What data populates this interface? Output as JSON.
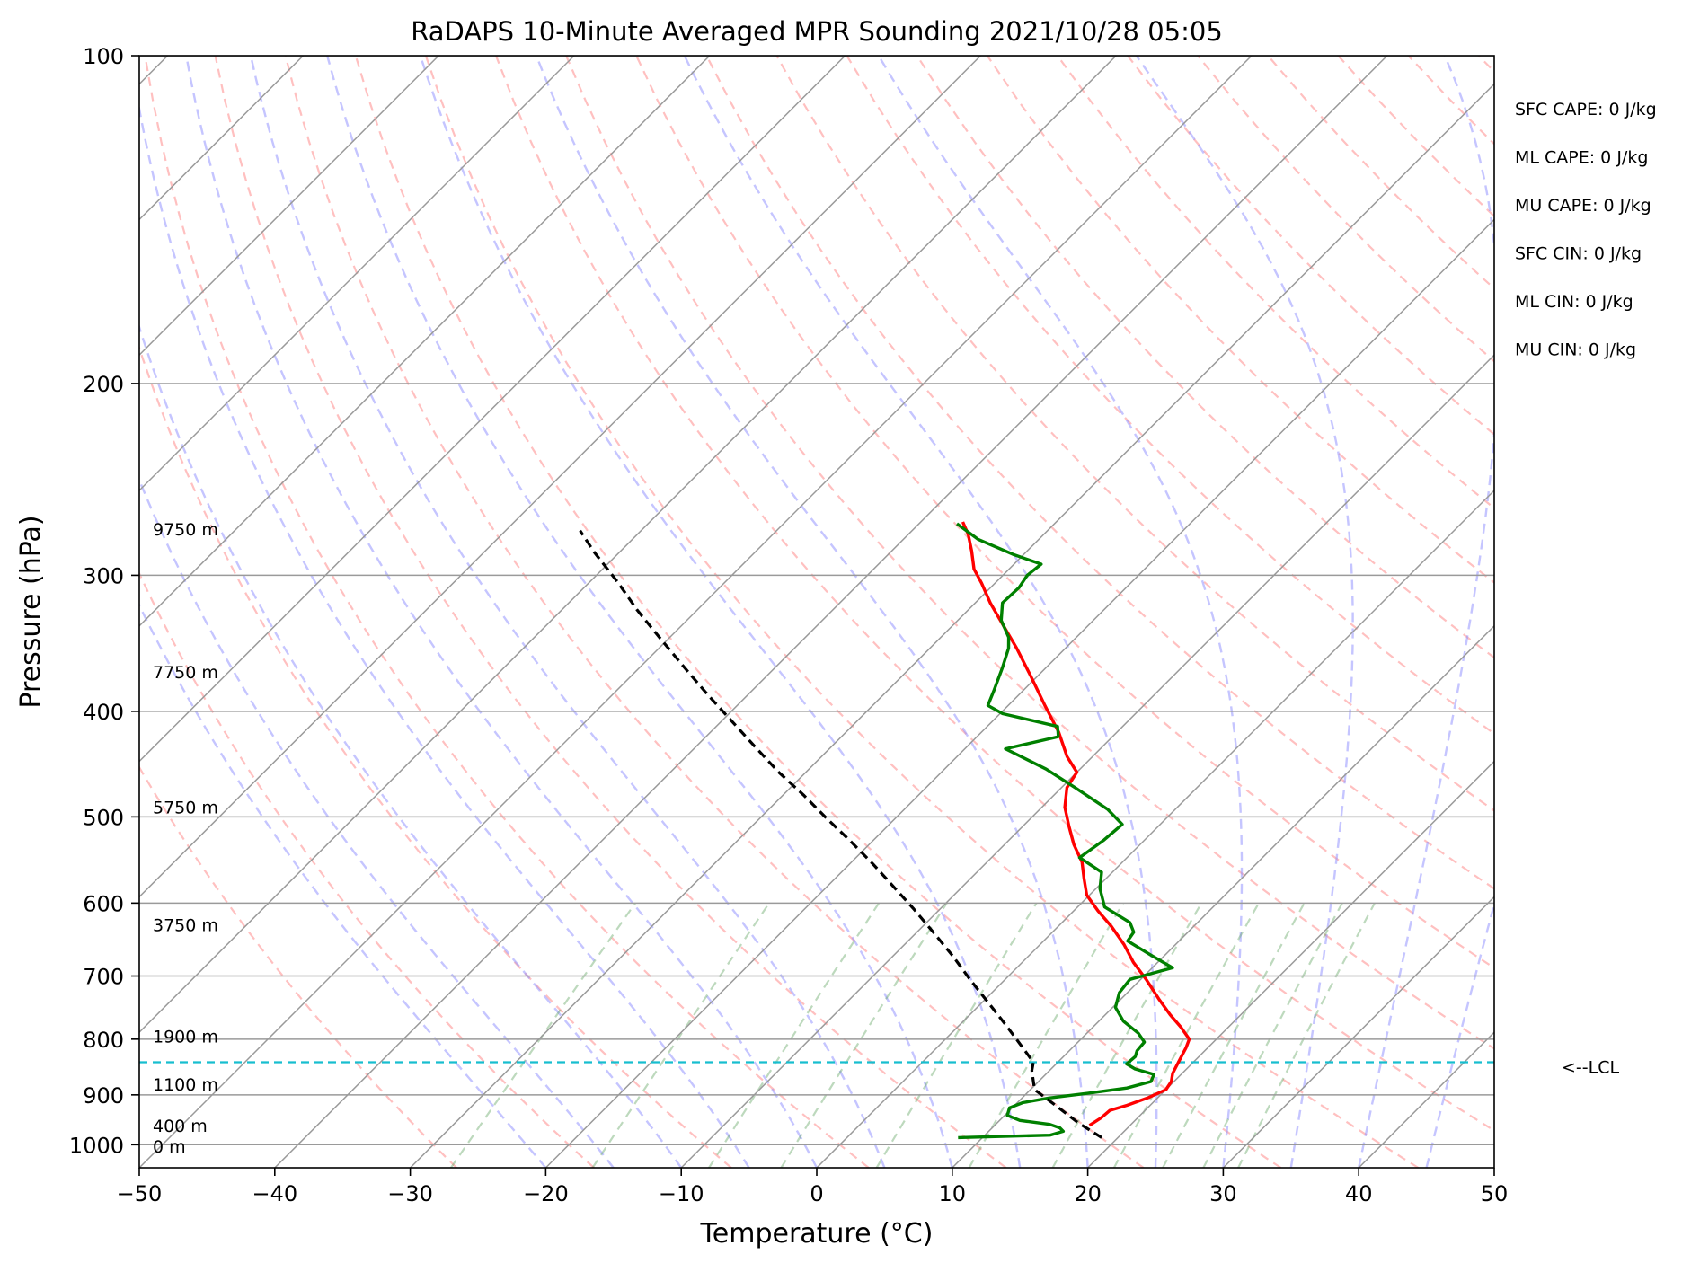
{
  "chart_data": {
    "type": "line",
    "title": "RaDAPS 10-Minute Averaged MPR Sounding 2021/10/28 05:05",
    "xlabel": "Temperature (°C)",
    "ylabel": "Pressure (hPa)",
    "xlim": [
      -50,
      50
    ],
    "ylim": [
      1050,
      100
    ],
    "yscale": "log",
    "skew": true,
    "grid": true,
    "x_ticks": [
      "−50",
      "−40",
      "−30",
      "−20",
      "−10",
      "0",
      "10",
      "20",
      "30",
      "40",
      "50"
    ],
    "y_ticks": [
      "100",
      "200",
      "300",
      "400",
      "500",
      "600",
      "700",
      "800",
      "900",
      "1000"
    ],
    "y_tick_values": [
      100,
      200,
      300,
      400,
      500,
      600,
      700,
      800,
      900,
      1000
    ],
    "height_labels": [
      {
        "text": "9750 m",
        "p": 272
      },
      {
        "text": "7750 m",
        "p": 368
      },
      {
        "text": "5750 m",
        "p": 490
      },
      {
        "text": "3750 m",
        "p": 628
      },
      {
        "text": "1900 m",
        "p": 795
      },
      {
        "text": "1100 m",
        "p": 880
      },
      {
        "text": "400 m",
        "p": 960
      },
      {
        "text": "0 m",
        "p": 1003
      }
    ],
    "stats": [
      "SFC CAPE: 0 J/kg",
      "ML CAPE: 0 J/kg",
      "MU CAPE: 0 J/kg",
      "SFC CIN: 0 J/kg",
      "ML CIN: 0 J/kg",
      "MU CIN: 0 J/kg"
    ],
    "lcl": {
      "label": "<--LCL",
      "p": 840
    },
    "series": [
      {
        "color": "#ff0000",
        "points": [
          [
            17.0,
            960
          ],
          [
            17.3,
            945
          ],
          [
            17.4,
            930
          ],
          [
            18.3,
            920
          ],
          [
            19.3,
            905
          ],
          [
            20.0,
            890
          ],
          [
            19.8,
            875
          ],
          [
            19.3,
            860
          ],
          [
            19.0,
            845
          ],
          [
            18.7,
            830
          ],
          [
            18.4,
            815
          ],
          [
            18.0,
            800
          ],
          [
            16.5,
            780
          ],
          [
            14.8,
            760
          ],
          [
            12.8,
            735
          ],
          [
            10.4,
            705
          ],
          [
            8.2,
            680
          ],
          [
            6.2,
            655
          ],
          [
            3.9,
            630
          ],
          [
            1.8,
            610
          ],
          [
            -0.2,
            590
          ],
          [
            -1.6,
            570
          ],
          [
            -3.0,
            550
          ],
          [
            -4.9,
            530
          ],
          [
            -6.6,
            510
          ],
          [
            -8.3,
            490
          ],
          [
            -9.6,
            470
          ],
          [
            -10.0,
            455
          ],
          [
            -11.9,
            440
          ],
          [
            -14.3,
            418
          ],
          [
            -17.3,
            395
          ],
          [
            -20.4,
            372
          ],
          [
            -23.6,
            350
          ],
          [
            -26.2,
            334
          ],
          [
            -28.9,
            318
          ],
          [
            -31.0,
            305
          ],
          [
            -32.6,
            296
          ],
          [
            -34.1,
            285
          ],
          [
            -35.6,
            275
          ],
          [
            -36.9,
            268
          ]
        ]
      },
      {
        "color": "#008000",
        "points": [
          [
            8.2,
            985
          ],
          [
            14.8,
            980
          ],
          [
            15.5,
            972
          ],
          [
            15.0,
            965
          ],
          [
            14.0,
            958
          ],
          [
            11.5,
            950
          ],
          [
            10.2,
            940
          ],
          [
            9.8,
            925
          ],
          [
            10.4,
            915
          ],
          [
            12.0,
            906
          ],
          [
            14.5,
            897
          ],
          [
            17.0,
            887
          ],
          [
            18.3,
            875
          ],
          [
            18.0,
            862
          ],
          [
            16.2,
            852
          ],
          [
            15.2,
            843
          ],
          [
            15.3,
            830
          ],
          [
            15.0,
            820
          ],
          [
            14.9,
            805
          ],
          [
            13.8,
            790
          ],
          [
            11.8,
            770
          ],
          [
            10.2,
            748
          ],
          [
            9.4,
            725
          ],
          [
            9.2,
            705
          ],
          [
            11.5,
            688
          ],
          [
            9.0,
            670
          ],
          [
            6.2,
            650
          ],
          [
            6.0,
            638
          ],
          [
            5.0,
            625
          ],
          [
            2.0,
            605
          ],
          [
            0.3,
            582
          ],
          [
            -0.8,
            562
          ],
          [
            -3.5,
            545
          ],
          [
            -3.0,
            525
          ],
          [
            -2.8,
            508
          ],
          [
            -5.0,
            492
          ],
          [
            -9.0,
            470
          ],
          [
            -12.5,
            452
          ],
          [
            -17.0,
            433
          ],
          [
            -14.0,
            422
          ],
          [
            -14.8,
            413
          ],
          [
            -19.8,
            402
          ],
          [
            -21.5,
            395
          ],
          [
            -22.2,
            382
          ],
          [
            -23.2,
            365
          ],
          [
            -24.2,
            350
          ],
          [
            -25.0,
            342
          ],
          [
            -26.8,
            330
          ],
          [
            -28.0,
            318
          ],
          [
            -27.9,
            308
          ],
          [
            -28.2,
            300
          ],
          [
            -28.0,
            293
          ],
          [
            -30.8,
            287
          ],
          [
            -34.5,
            278
          ],
          [
            -37.2,
            269
          ]
        ]
      },
      {
        "color": "#000000",
        "dashed": true,
        "points": [
          [
            18.8,
            985
          ],
          [
            16.0,
            955
          ],
          [
            13.0,
            920
          ],
          [
            10.3,
            890
          ],
          [
            8.7,
            855
          ],
          [
            8.2,
            840
          ],
          [
            6.0,
            810
          ],
          [
            3.3,
            775
          ],
          [
            0.0,
            735
          ],
          [
            -2.6,
            705
          ],
          [
            -5.5,
            672
          ],
          [
            -8.6,
            640
          ],
          [
            -12.0,
            607
          ],
          [
            -14.8,
            582
          ],
          [
            -18.2,
            553
          ],
          [
            -21.8,
            525
          ],
          [
            -25.0,
            502
          ],
          [
            -28.4,
            478
          ],
          [
            -32.0,
            455
          ],
          [
            -35.5,
            432
          ],
          [
            -39.3,
            408
          ],
          [
            -43.0,
            386
          ],
          [
            -46.8,
            364
          ],
          [
            -50.6,
            343
          ],
          [
            -54.4,
            323
          ],
          [
            -58.0,
            304
          ],
          [
            -61.8,
            286
          ],
          [
            -64.5,
            273
          ]
        ]
      }
    ]
  }
}
